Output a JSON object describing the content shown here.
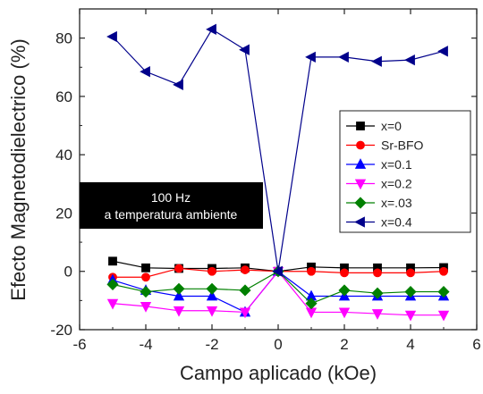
{
  "chart_data": {
    "type": "line",
    "title": "",
    "xlabel": "Campo aplicado (kOe)",
    "ylabel": "Efecto Magnetodielectrico (%)",
    "xlim": [
      -6,
      6
    ],
    "ylim": [
      -20,
      90
    ],
    "xticks": [
      -6,
      -4,
      -2,
      0,
      2,
      4,
      6
    ],
    "yticks": [
      -20,
      0,
      20,
      40,
      60,
      80
    ],
    "grid": false,
    "legend_position": "right",
    "annotation": [
      "100 Hz",
      "a temperatura ambiente"
    ],
    "series": [
      {
        "name": "x=0",
        "color": "#000000",
        "marker": "square",
        "x": [
          -5,
          -4,
          -3,
          -2,
          -1,
          0,
          1,
          2,
          3,
          4,
          5
        ],
        "y": [
          3.5,
          1.2,
          1.0,
          1.0,
          1.2,
          0,
          1.5,
          1.2,
          1.2,
          1.2,
          1.3
        ]
      },
      {
        "name": "Sr-BFO",
        "color": "#ff0000",
        "marker": "circle",
        "x": [
          -5,
          -4,
          -3,
          -2,
          -1,
          0,
          1,
          2,
          3,
          4,
          5
        ],
        "y": [
          -2,
          -2,
          1.0,
          0,
          0.5,
          0,
          0,
          -0.5,
          -0.5,
          -0.5,
          0
        ]
      },
      {
        "name": "x=0.1",
        "color": "#0000ff",
        "marker": "triangle-up",
        "x": [
          -5,
          -4,
          -3,
          -2,
          -1,
          0,
          1,
          2,
          3,
          4,
          5
        ],
        "y": [
          -3,
          -6.5,
          -8.5,
          -8.5,
          -14,
          0,
          -8.5,
          -8.5,
          -8.5,
          -8.5,
          -8.5
        ]
      },
      {
        "name": "x=0.2",
        "color": "#ff00ff",
        "marker": "triangle-down",
        "x": [
          -5,
          -4,
          -3,
          -2,
          -1,
          0,
          1,
          2,
          3,
          4,
          5
        ],
        "y": [
          -11,
          -12,
          -13.5,
          -13.5,
          -14,
          0,
          -14,
          -14,
          -14.5,
          -15,
          -15
        ]
      },
      {
        "name": "x=.03",
        "color": "#008000",
        "marker": "diamond",
        "x": [
          -5,
          -4,
          -3,
          -2,
          -1,
          0,
          1,
          2,
          3,
          4,
          5
        ],
        "y": [
          -4.5,
          -7,
          -6,
          -6,
          -6.5,
          0,
          -11,
          -6.5,
          -7.5,
          -7,
          -7
        ]
      },
      {
        "name": "x=0.4",
        "color": "#00008b",
        "marker": "triangle-left",
        "x": [
          -5,
          -4,
          -3,
          -2,
          -1,
          0,
          1,
          2,
          3,
          4,
          5
        ],
        "y": [
          80.5,
          68.5,
          64,
          83,
          76,
          0,
          73.5,
          73.5,
          72,
          72.5,
          75.5
        ]
      }
    ]
  }
}
